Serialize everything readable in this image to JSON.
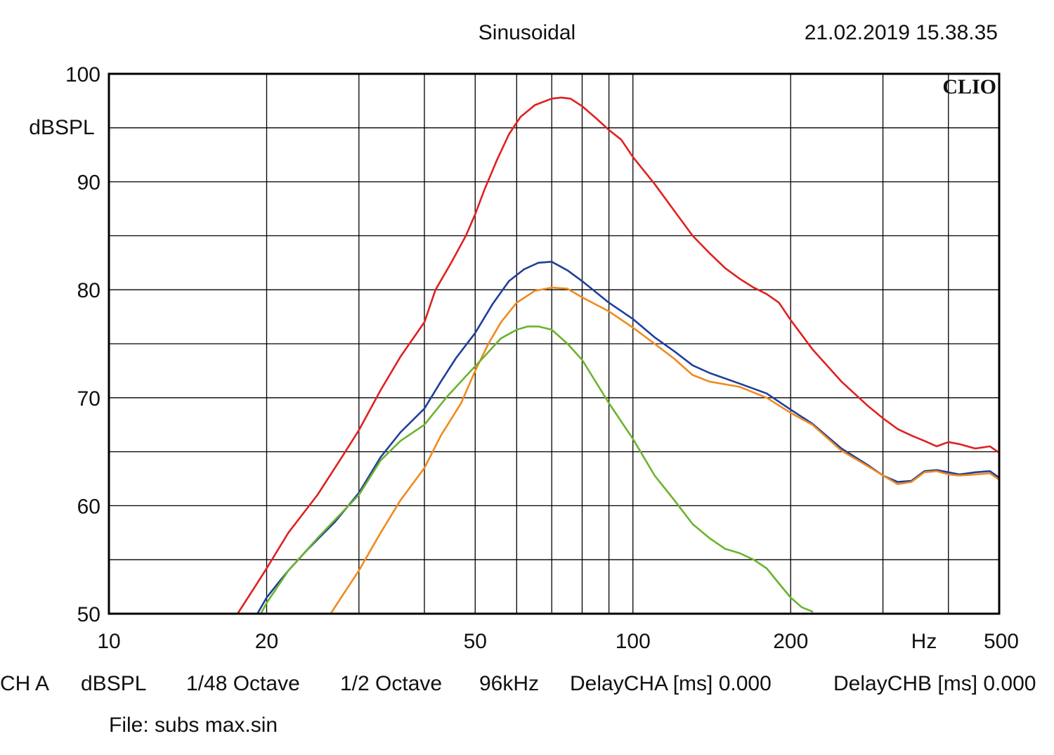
{
  "header": {
    "title": "Sinusoidal",
    "timestamp": "21.02.2019 15.38.35"
  },
  "brand": {
    "logo_text": "CLIO"
  },
  "footer": {
    "settings": [
      "CH A",
      "dBSPL",
      "1/48 Octave",
      "1/2 Octave",
      "96kHz",
      "DelayCHA [ms] 0.000",
      "DelayCHB [ms] 0.000"
    ],
    "file": "File: subs max.sin"
  },
  "colors": {
    "background": "#ffffff",
    "grid": "#000000",
    "red": "#e02020",
    "blue": "#1f3f99",
    "orange": "#f08a1e",
    "green": "#6bb32e"
  },
  "chart_data": {
    "type": "line",
    "title": "Sinusoidal",
    "xlabel": "Hz",
    "ylabel": "dBSPL",
    "xscale": "log",
    "xlim": [
      10,
      500
    ],
    "ylim": [
      50,
      100
    ],
    "grid": true,
    "x_tick_labels": [
      {
        "value": 10,
        "label": "10"
      },
      {
        "value": 20,
        "label": "20"
      },
      {
        "value": 50,
        "label": "50"
      },
      {
        "value": 100,
        "label": "100"
      },
      {
        "value": 200,
        "label": "200"
      },
      {
        "value": 500,
        "label": "500"
      }
    ],
    "y_tick_labels": [
      {
        "value": 100,
        "label": "100"
      },
      {
        "value": 90,
        "label": "90"
      },
      {
        "value": 80,
        "label": "80"
      },
      {
        "value": 70,
        "label": "70"
      },
      {
        "value": 60,
        "label": "60"
      },
      {
        "value": 50,
        "label": "50"
      }
    ],
    "series": [
      {
        "color": "#e02020",
        "x": [
          17.6,
          19,
          20,
          22,
          25,
          28,
          30,
          33,
          36,
          40,
          42,
          45,
          48,
          50,
          52,
          55,
          58,
          61,
          65,
          70,
          73,
          76,
          80,
          85,
          90,
          95,
          100,
          110,
          120,
          130,
          140,
          150,
          160,
          170,
          180,
          190,
          200,
          220,
          250,
          280,
          300,
          320,
          340,
          360,
          380,
          400,
          420,
          450,
          480,
          500
        ],
        "y": [
          50,
          52.5,
          54.2,
          57.5,
          61.0,
          64.7,
          67.0,
          70.7,
          73.8,
          77.0,
          80.0,
          82.5,
          85.0,
          87.0,
          89.2,
          92.0,
          94.4,
          96.0,
          97.1,
          97.7,
          97.8,
          97.7,
          97.0,
          95.9,
          94.8,
          93.9,
          92.3,
          89.8,
          87.3,
          85.0,
          83.4,
          82.0,
          81.0,
          80.2,
          79.6,
          78.8,
          77.2,
          74.5,
          71.5,
          69.3,
          68.1,
          67.1,
          66.5,
          66.0,
          65.5,
          65.9,
          65.7,
          65.3,
          65.5,
          64.9
        ]
      },
      {
        "color": "#1f3f99",
        "x": [
          19.2,
          20,
          21,
          22,
          24,
          27,
          30,
          33,
          36,
          40,
          43,
          46,
          50,
          54,
          58,
          62,
          66,
          70,
          75,
          80,
          90,
          100,
          110,
          120,
          130,
          140,
          160,
          180,
          200,
          220,
          250,
          280,
          300,
          320,
          340,
          360,
          380,
          400,
          420,
          450,
          480,
          500
        ],
        "y": [
          50,
          51.5,
          52.8,
          54.0,
          56.0,
          58.5,
          61.2,
          64.5,
          66.8,
          69.0,
          71.5,
          73.7,
          76.0,
          78.7,
          80.8,
          81.9,
          82.5,
          82.6,
          81.8,
          80.8,
          78.8,
          77.3,
          75.6,
          74.3,
          73.0,
          72.3,
          71.3,
          70.4,
          68.9,
          67.6,
          65.3,
          63.8,
          62.8,
          62.2,
          62.3,
          63.2,
          63.3,
          63.1,
          62.9,
          63.1,
          63.2,
          62.6
        ]
      },
      {
        "color": "#f08a1e",
        "x": [
          26.5,
          28,
          30,
          33,
          36,
          40,
          43,
          47,
          50,
          53,
          56,
          60,
          65,
          70,
          75,
          80,
          90,
          100,
          110,
          120,
          130,
          140,
          160,
          180,
          200,
          220,
          250,
          280,
          300,
          320,
          340,
          360,
          380,
          400,
          420,
          450,
          480,
          500
        ],
        "y": [
          50,
          51.8,
          54.0,
          57.5,
          60.5,
          63.5,
          66.5,
          69.5,
          72.5,
          75.0,
          77.0,
          78.8,
          79.9,
          80.2,
          80.1,
          79.3,
          78.0,
          76.5,
          75.0,
          73.6,
          72.1,
          71.5,
          71.0,
          70.0,
          68.6,
          67.5,
          65.1,
          63.7,
          62.8,
          62.0,
          62.2,
          63.1,
          63.2,
          62.9,
          62.8,
          62.9,
          63.0,
          62.4
        ]
      },
      {
        "color": "#6bb32e",
        "x": [
          19.5,
          20,
          22,
          25,
          28,
          30,
          33,
          36,
          40,
          44,
          48,
          52,
          56,
          60,
          63,
          66,
          70,
          75,
          80,
          90,
          100,
          110,
          120,
          130,
          140,
          150,
          160,
          170,
          180,
          190,
          200,
          210,
          220
        ],
        "y": [
          50,
          51.0,
          54.0,
          57.0,
          59.5,
          61.0,
          64.2,
          66.0,
          67.5,
          70.0,
          72.0,
          73.8,
          75.5,
          76.3,
          76.6,
          76.6,
          76.3,
          75.0,
          73.5,
          69.5,
          66.2,
          62.8,
          60.5,
          58.3,
          57.0,
          56.0,
          55.6,
          55.0,
          54.2,
          52.8,
          51.5,
          50.6,
          50.2
        ]
      }
    ]
  }
}
